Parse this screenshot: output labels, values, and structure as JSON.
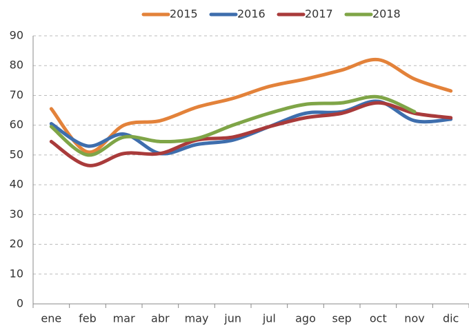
{
  "chart_data": {
    "type": "line",
    "categories": [
      "ene",
      "feb",
      "mar",
      "abr",
      "may",
      "jun",
      "jul",
      "ago",
      "sep",
      "oct",
      "nov",
      "dic"
    ],
    "series": [
      {
        "name": "2015",
        "color": "#e3823a",
        "values": [
          65.5,
          51,
          60,
          61.5,
          66,
          69,
          73,
          75.5,
          78.5,
          82,
          75.5,
          71.5
        ]
      },
      {
        "name": "2016",
        "color": "#3e6ead",
        "values": [
          60.5,
          53,
          57,
          50.5,
          53.5,
          55,
          59.5,
          64,
          64.5,
          68,
          61.5,
          62
        ]
      },
      {
        "name": "2017",
        "color": "#a93b3b",
        "values": [
          54.5,
          46.5,
          50.5,
          50.5,
          55,
          56,
          59.5,
          62.5,
          64,
          67.5,
          64,
          62.5
        ]
      },
      {
        "name": "2018",
        "color": "#7fa547",
        "values": [
          59.5,
          50,
          56,
          54.5,
          55.5,
          60,
          64,
          67,
          67.5,
          69.5,
          64.5,
          null
        ]
      }
    ],
    "ylim": [
      0,
      90
    ],
    "yticks": [
      0,
      10,
      20,
      30,
      40,
      50,
      60,
      70,
      80,
      90
    ],
    "grid": true,
    "legend": "top"
  }
}
